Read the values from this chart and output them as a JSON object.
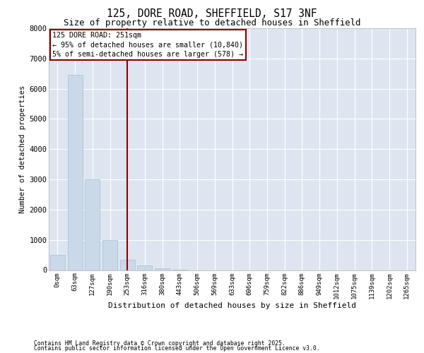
{
  "title_line1": "125, DORE ROAD, SHEFFIELD, S17 3NF",
  "title_line2": "Size of property relative to detached houses in Sheffield",
  "xlabel": "Distribution of detached houses by size in Sheffield",
  "ylabel": "Number of detached properties",
  "bar_color": "#c9d9ea",
  "bar_edgecolor": "#a8bece",
  "background_color": "#dde6f0",
  "grid_color": "#ffffff",
  "categories": [
    "0sqm",
    "63sqm",
    "127sqm",
    "190sqm",
    "253sqm",
    "316sqm",
    "380sqm",
    "443sqm",
    "506sqm",
    "569sqm",
    "633sqm",
    "696sqm",
    "759sqm",
    "822sqm",
    "886sqm",
    "949sqm",
    "1012sqm",
    "1075sqm",
    "1139sqm",
    "1202sqm",
    "1265sqm"
  ],
  "values": [
    500,
    6450,
    3000,
    1000,
    350,
    150,
    60,
    10,
    0,
    0,
    0,
    0,
    0,
    0,
    0,
    0,
    0,
    0,
    0,
    0,
    0
  ],
  "ylim": [
    0,
    8000
  ],
  "yticks": [
    0,
    1000,
    2000,
    3000,
    4000,
    5000,
    6000,
    7000,
    8000
  ],
  "vline_x": 4.0,
  "vline_color": "#8b0000",
  "annotation_title": "125 DORE ROAD: 251sqm",
  "annotation_line2": "← 95% of detached houses are smaller (10,840)",
  "annotation_line3": "5% of semi-detached houses are larger (578) →",
  "annotation_box_edgecolor": "#8b0000",
  "footer_line1": "Contains HM Land Registry data © Crown copyright and database right 2025.",
  "footer_line2": "Contains public sector information licensed under the Open Government Licence v3.0."
}
